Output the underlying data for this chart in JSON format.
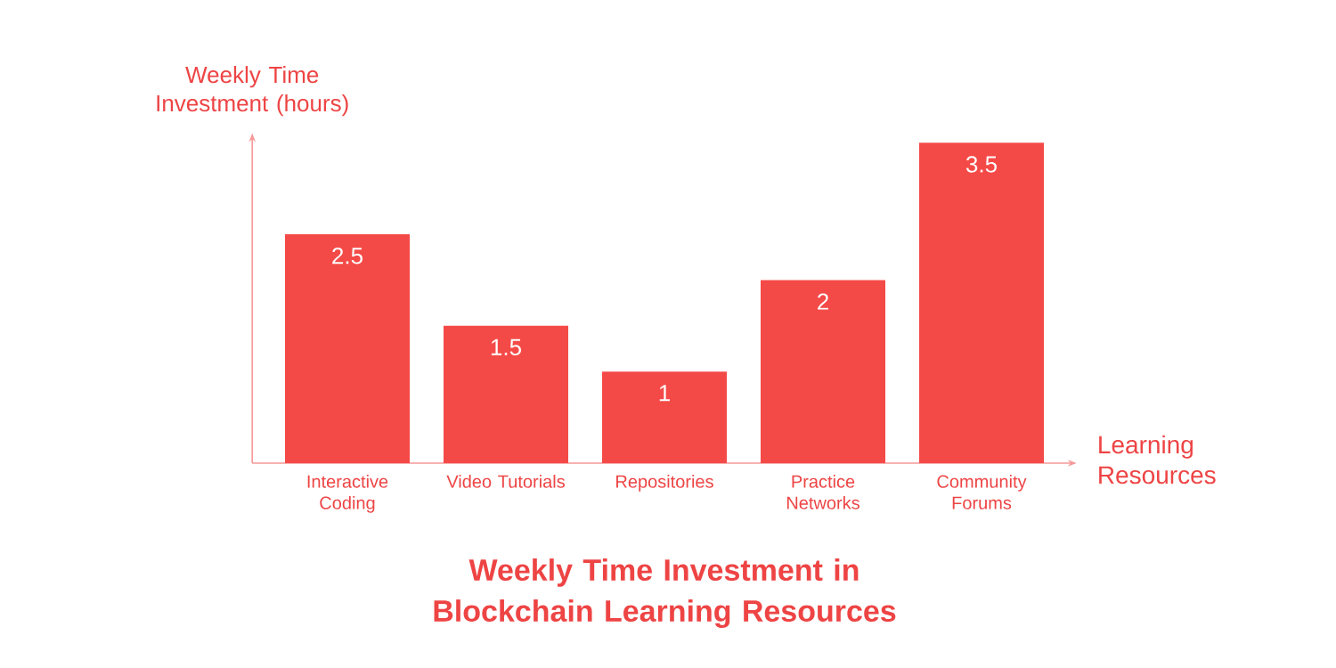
{
  "chart_data": {
    "type": "bar",
    "title": "Weekly Time Investment in Blockchain Learning Resources",
    "xlabel": "Learning Resources",
    "ylabel": "Weekly Time Investment (hours)",
    "categories": [
      "Interactive Coding",
      "Video Tutorials",
      "Repositories",
      "Practice Networks",
      "Community Forums"
    ],
    "values": [
      2.5,
      1.5,
      1,
      2,
      3.5
    ],
    "color": "#f44a47",
    "data_labels": true
  }
}
